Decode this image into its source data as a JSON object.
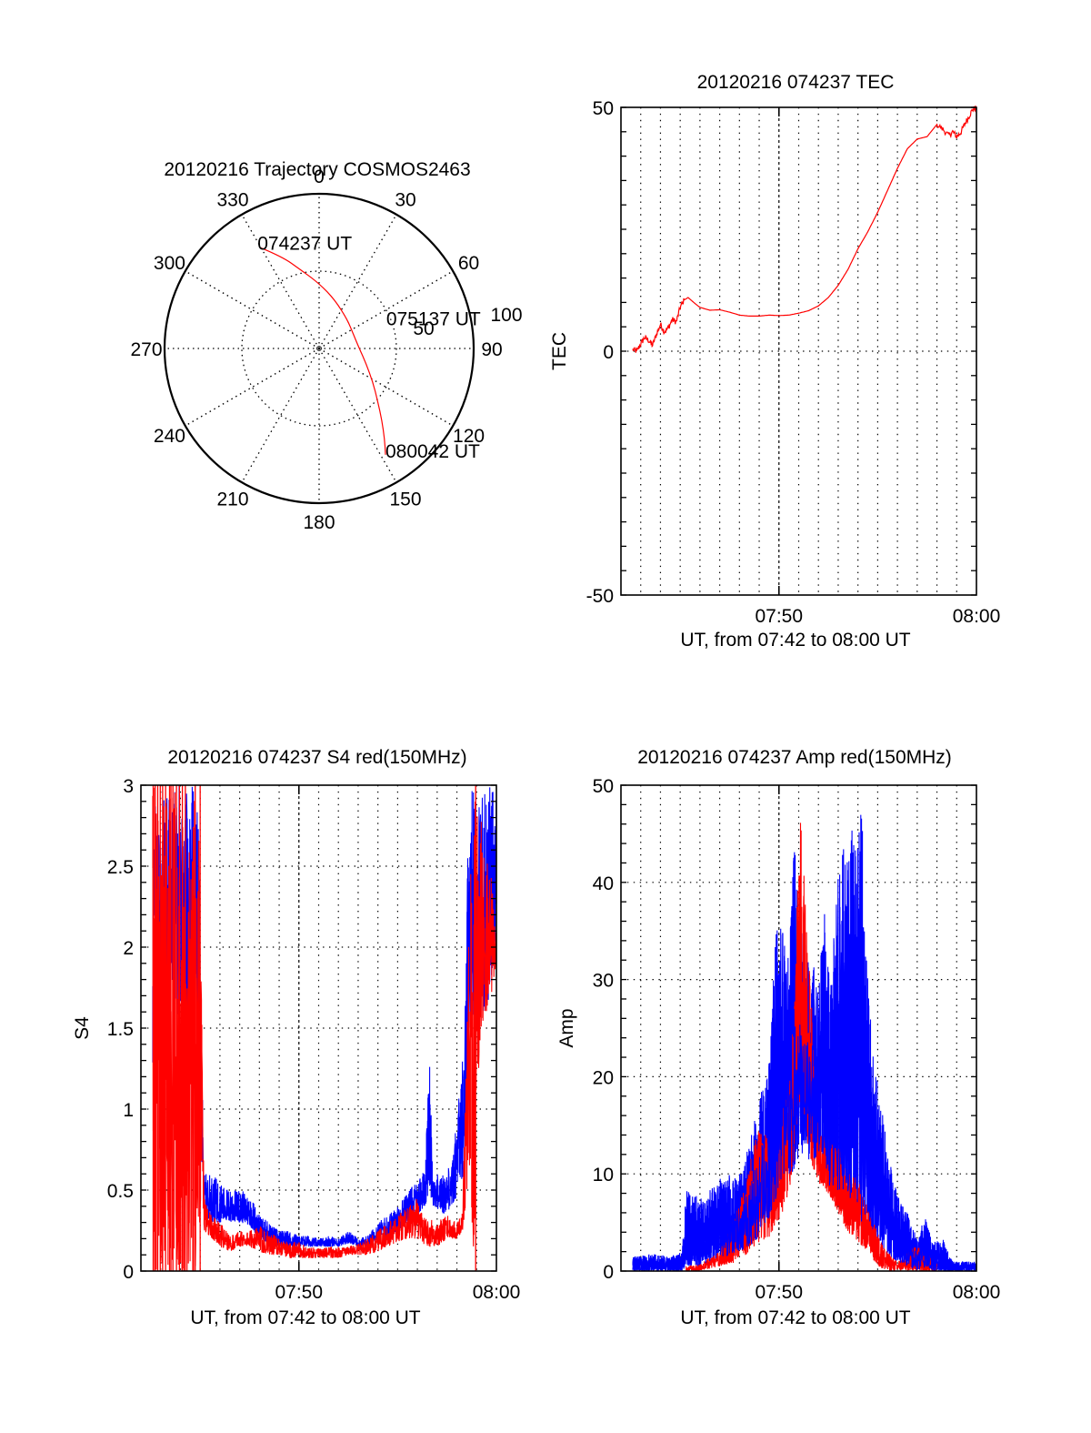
{
  "chart_data": [
    {
      "id": "trajectory",
      "type": "polar",
      "title": "20120216 Trajectory COSMOS2463",
      "azimuth_labels": [
        "0",
        "30",
        "60",
        "90",
        "120",
        "150",
        "180",
        "210",
        "240",
        "270",
        "300",
        "330"
      ],
      "azimuth_values": [
        0,
        30,
        60,
        90,
        120,
        150,
        180,
        210,
        240,
        270,
        300,
        330
      ],
      "ring_labels": [
        "50",
        "100"
      ],
      "ring_values": [
        50,
        100
      ],
      "r_max": 100,
      "grid": true,
      "series": [
        {
          "name": "trajectory",
          "color": "#ff0000",
          "points_az_r": [
            [
              330,
              75
            ],
            [
              338,
              64
            ],
            [
              347,
              52
            ],
            [
              0,
              42
            ],
            [
              18,
              33
            ],
            [
              45,
              26
            ],
            [
              68,
              24
            ],
            [
              90,
              26
            ],
            [
              108,
              32
            ],
            [
              122,
              41
            ],
            [
              132,
              51
            ],
            [
              139,
              62
            ],
            [
              144,
              72
            ],
            [
              148,
              81
            ]
          ]
        }
      ],
      "annotations": [
        {
          "text": "074237 UT",
          "az": 330,
          "r": 75
        },
        {
          "text": "075137 UT",
          "az": 68,
          "r": 24
        },
        {
          "text": "080042 UT",
          "az": 148,
          "r": 81
        }
      ]
    },
    {
      "id": "tec",
      "type": "line",
      "title": "20120216 074237 TEC",
      "xlabel": "UT, from 07:42 to 08:00 UT",
      "ylabel": "TEC",
      "x_unit": "minutes after 07:42",
      "xlim": [
        0,
        18
      ],
      "ylim": [
        -50,
        50
      ],
      "x_tick_labels": [
        "07:50",
        "08:00"
      ],
      "x_tick_values": [
        8,
        18
      ],
      "y_tick_labels": [
        "50",
        "0",
        "-50"
      ],
      "y_tick_values": [
        50,
        0,
        -50
      ],
      "grid": "vertical dotted every minute, horizontal at 0",
      "series": [
        {
          "name": "TEC",
          "color": "#ff0000",
          "x": [
            0.6,
            0.8,
            1.0,
            1.2,
            1.4,
            1.6,
            1.8,
            2.0,
            2.2,
            2.4,
            2.6,
            2.8,
            3.0,
            3.2,
            3.4,
            3.6,
            3.8,
            4.0,
            4.5,
            5.0,
            5.5,
            6.0,
            6.5,
            7.0,
            7.5,
            8.0,
            8.5,
            9.0,
            9.5,
            10.0,
            10.5,
            11.0,
            11.5,
            12.0,
            12.5,
            13.0,
            13.5,
            14.0,
            14.5,
            15.0,
            15.5,
            16.0,
            16.3,
            16.6,
            16.8,
            17.0,
            17.2,
            17.4,
            17.6,
            17.8,
            18.0
          ],
          "y": [
            0.3,
            0.0,
            1.5,
            2.8,
            2.2,
            1.2,
            3.5,
            5.5,
            4.0,
            4.8,
            6.5,
            6.0,
            9.0,
            10.5,
            11.0,
            10.3,
            9.6,
            9.0,
            8.4,
            8.5,
            8.0,
            7.4,
            7.2,
            7.2,
            7.4,
            7.3,
            7.4,
            7.8,
            8.3,
            9.3,
            11.0,
            13.5,
            16.8,
            21.0,
            24.5,
            28.5,
            33.0,
            37.5,
            41.5,
            43.5,
            44.0,
            46.5,
            45.5,
            44.2,
            45.0,
            44.0,
            44.8,
            46.5,
            48.0,
            49.5,
            50.0
          ]
        }
      ]
    },
    {
      "id": "s4",
      "type": "line",
      "title": "20120216 074237 S4 red(150MHz)",
      "xlabel": "UT, from 07:42 to 08:00 UT",
      "ylabel": "S4",
      "x_unit": "minutes after 07:42",
      "xlim": [
        0,
        18
      ],
      "ylim": [
        0,
        3
      ],
      "x_tick_labels": [
        "07:50",
        "08:00"
      ],
      "x_tick_values": [
        8,
        18
      ],
      "y_tick_labels": [
        "0",
        "0.5",
        "1",
        "1.5",
        "2",
        "2.5",
        "3"
      ],
      "y_tick_values": [
        0,
        0.5,
        1,
        1.5,
        2,
        2.5,
        3
      ],
      "grid": "dotted, vertical every minute, horizontal every 0.5",
      "series": [
        {
          "name": "blue channel",
          "color": "#0000ff",
          "envelope_t_lo_hi": [
            [
              0.6,
              1.2,
              3.0
            ],
            [
              1.0,
              1.3,
              3.0
            ],
            [
              1.5,
              1.5,
              3.0
            ],
            [
              2.0,
              1.6,
              3.0
            ],
            [
              2.5,
              1.5,
              3.0
            ],
            [
              2.9,
              1.4,
              3.0
            ],
            [
              3.05,
              0.7,
              1.5
            ],
            [
              3.2,
              0.35,
              0.6
            ],
            [
              3.6,
              0.3,
              0.6
            ],
            [
              4.0,
              0.3,
              0.55
            ],
            [
              4.5,
              0.3,
              0.5
            ],
            [
              5.0,
              0.3,
              0.5
            ],
            [
              5.5,
              0.28,
              0.48
            ],
            [
              6.0,
              0.2,
              0.35
            ],
            [
              6.5,
              0.17,
              0.3
            ],
            [
              7.0,
              0.15,
              0.25
            ],
            [
              7.5,
              0.15,
              0.25
            ],
            [
              8.0,
              0.15,
              0.22
            ],
            [
              8.5,
              0.15,
              0.22
            ],
            [
              9.0,
              0.15,
              0.2
            ],
            [
              9.5,
              0.15,
              0.22
            ],
            [
              10.0,
              0.15,
              0.2
            ],
            [
              10.5,
              0.17,
              0.25
            ],
            [
              11.0,
              0.15,
              0.2
            ],
            [
              11.5,
              0.15,
              0.22
            ],
            [
              12.0,
              0.2,
              0.3
            ],
            [
              12.5,
              0.2,
              0.35
            ],
            [
              13.0,
              0.25,
              0.4
            ],
            [
              13.5,
              0.3,
              0.5
            ],
            [
              14.0,
              0.35,
              0.55
            ],
            [
              14.4,
              0.4,
              0.65
            ],
            [
              14.6,
              0.5,
              1.35
            ],
            [
              14.8,
              0.4,
              0.6
            ],
            [
              15.3,
              0.35,
              0.6
            ],
            [
              15.8,
              0.4,
              0.7
            ],
            [
              16.4,
              0.6,
              1.5
            ],
            [
              16.6,
              1.5,
              3.0
            ],
            [
              17.0,
              1.6,
              3.0
            ],
            [
              17.5,
              1.6,
              3.0
            ],
            [
              18.0,
              2.0,
              3.0
            ]
          ]
        },
        {
          "name": "red channel",
          "color": "#ff0000",
          "envelope_t_lo_hi": [
            [
              0.6,
              0.0,
              3.0
            ],
            [
              1.0,
              0.0,
              3.0
            ],
            [
              1.5,
              0.0,
              3.0
            ],
            [
              2.0,
              0.0,
              3.0
            ],
            [
              2.5,
              0.0,
              3.0
            ],
            [
              2.9,
              0.0,
              3.0
            ],
            [
              3.05,
              0.5,
              1.9
            ],
            [
              3.2,
              0.25,
              0.45
            ],
            [
              3.6,
              0.2,
              0.35
            ],
            [
              4.0,
              0.15,
              0.3
            ],
            [
              4.5,
              0.12,
              0.22
            ],
            [
              5.0,
              0.15,
              0.25
            ],
            [
              5.5,
              0.15,
              0.25
            ],
            [
              6.0,
              0.12,
              0.28
            ],
            [
              6.5,
              0.1,
              0.25
            ],
            [
              7.0,
              0.1,
              0.2
            ],
            [
              7.5,
              0.08,
              0.18
            ],
            [
              8.0,
              0.08,
              0.18
            ],
            [
              8.5,
              0.08,
              0.15
            ],
            [
              9.0,
              0.08,
              0.14
            ],
            [
              9.5,
              0.08,
              0.15
            ],
            [
              10.0,
              0.08,
              0.15
            ],
            [
              10.5,
              0.1,
              0.15
            ],
            [
              11.0,
              0.1,
              0.18
            ],
            [
              11.5,
              0.1,
              0.2
            ],
            [
              12.0,
              0.12,
              0.25
            ],
            [
              12.5,
              0.15,
              0.3
            ],
            [
              13.0,
              0.18,
              0.35
            ],
            [
              13.5,
              0.2,
              0.4
            ],
            [
              14.0,
              0.2,
              0.45
            ],
            [
              14.5,
              0.15,
              0.35
            ],
            [
              15.0,
              0.15,
              0.3
            ],
            [
              15.5,
              0.2,
              0.35
            ],
            [
              16.0,
              0.2,
              0.3
            ],
            [
              16.3,
              0.25,
              0.4
            ],
            [
              16.6,
              0.6,
              2.2
            ],
            [
              16.9,
              0.0,
              3.0
            ],
            [
              17.2,
              1.5,
              2.8
            ],
            [
              17.6,
              1.6,
              2.6
            ],
            [
              18.0,
              1.9,
              2.1
            ]
          ]
        }
      ]
    },
    {
      "id": "amp",
      "type": "line",
      "title": "20120216 074237 Amp red(150MHz)",
      "xlabel": "UT, from 07:42 to 08:00 UT",
      "ylabel": "Amp",
      "x_unit": "minutes after 07:42",
      "xlim": [
        0,
        18
      ],
      "ylim": [
        0,
        50
      ],
      "x_tick_labels": [
        "07:50",
        "08:00"
      ],
      "x_tick_values": [
        8,
        18
      ],
      "y_tick_labels": [
        "0",
        "10",
        "20",
        "30",
        "40",
        "50"
      ],
      "y_tick_values": [
        0,
        10,
        20,
        30,
        40,
        50
      ],
      "grid": "dotted, vertical every minute, horizontal every 10",
      "series": [
        {
          "name": "blue channel",
          "color": "#0000ff",
          "envelope_t_lo_hi": [
            [
              0.6,
              0.0,
              1.5
            ],
            [
              1.5,
              0.0,
              1.8
            ],
            [
              2.5,
              0.0,
              1.5
            ],
            [
              3.1,
              0.0,
              2.0
            ],
            [
              3.3,
              0.5,
              8.5
            ],
            [
              4.0,
              0.5,
              7.5
            ],
            [
              4.5,
              1.0,
              8.5
            ],
            [
              5.0,
              1.5,
              9.5
            ],
            [
              5.5,
              1.5,
              10.0
            ],
            [
              6.0,
              2.0,
              10.0
            ],
            [
              6.5,
              2.5,
              13.0
            ],
            [
              7.0,
              3.5,
              18.0
            ],
            [
              7.5,
              5.5,
              22.0
            ],
            [
              7.8,
              7.0,
              34.0
            ],
            [
              8.0,
              9.0,
              37.0
            ],
            [
              8.3,
              10.0,
              34.0
            ],
            [
              8.6,
              10.0,
              38.0
            ],
            [
              8.8,
              10.0,
              44.5
            ],
            [
              9.0,
              12.0,
              36.0
            ],
            [
              9.3,
              12.0,
              34.0
            ],
            [
              9.6,
              11.0,
              31.0
            ],
            [
              10.0,
              12.0,
              32.0
            ],
            [
              10.3,
              12.0,
              37.0
            ],
            [
              10.6,
              8.0,
              29.0
            ],
            [
              11.0,
              8.0,
              41.0
            ],
            [
              11.3,
              8.0,
              44.0
            ],
            [
              11.7,
              7.0,
              45.5
            ],
            [
              12.0,
              5.0,
              46.5
            ],
            [
              12.2,
              5.0,
              47.5
            ],
            [
              12.4,
              5.0,
              33.0
            ],
            [
              12.8,
              3.0,
              22.0
            ],
            [
              13.2,
              2.5,
              17.0
            ],
            [
              13.6,
              1.5,
              12.0
            ],
            [
              14.0,
              1.0,
              8.0
            ],
            [
              14.5,
              0.5,
              6.0
            ],
            [
              15.0,
              0.0,
              3.5
            ],
            [
              15.4,
              0.3,
              5.5
            ],
            [
              15.8,
              0.0,
              3.0
            ],
            [
              16.3,
              0.0,
              3.5
            ],
            [
              16.8,
              0.0,
              1.0
            ],
            [
              17.5,
              0.0,
              1.0
            ],
            [
              18.0,
              0.0,
              1.0
            ]
          ]
        },
        {
          "name": "red channel",
          "color": "#ff0000",
          "envelope_t_lo_hi": [
            [
              3.3,
              0.0,
              0.5
            ],
            [
              4.0,
              0.0,
              0.8
            ],
            [
              5.0,
              0.5,
              2.0
            ],
            [
              6.0,
              1.0,
              7.0
            ],
            [
              6.5,
              2.0,
              11.0
            ],
            [
              7.0,
              3.0,
              15.0
            ],
            [
              7.5,
              3.5,
              14.5
            ],
            [
              7.9,
              5.0,
              12.0
            ],
            [
              8.2,
              6.0,
              17.0
            ],
            [
              8.6,
              9.0,
              20.0
            ],
            [
              8.9,
              14.0,
              38.0
            ],
            [
              9.1,
              18.0,
              47.0
            ],
            [
              9.3,
              16.0,
              40.0
            ],
            [
              9.6,
              11.0,
              30.0
            ],
            [
              10.0,
              9.0,
              14.0
            ],
            [
              10.5,
              8.0,
              14.0
            ],
            [
              11.0,
              6.0,
              13.0
            ],
            [
              11.5,
              4.0,
              10.5
            ],
            [
              12.0,
              3.0,
              9.5
            ],
            [
              12.5,
              2.0,
              6.5
            ],
            [
              13.0,
              0.5,
              4.0
            ],
            [
              13.5,
              0.0,
              2.0
            ],
            [
              14.0,
              0.0,
              1.0
            ],
            [
              15.0,
              0.0,
              2.8
            ],
            [
              16.0,
              0.0,
              0.8
            ]
          ]
        }
      ]
    }
  ]
}
